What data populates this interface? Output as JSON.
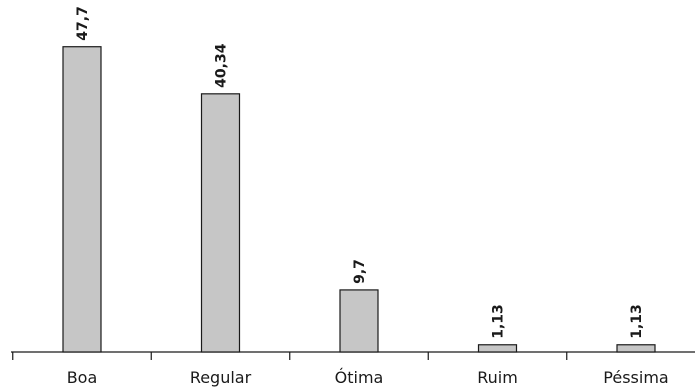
{
  "chart_data": {
    "type": "bar",
    "categories": [
      "Boa",
      "Regular",
      "Ótima",
      "Ruim",
      "Péssima"
    ],
    "values": [
      47.7,
      40.34,
      9.7,
      1.13,
      1.13
    ],
    "value_labels": [
      "47,7",
      "40,34",
      "9,7",
      "1,13",
      "1,13"
    ],
    "ylim": [
      0,
      55
    ],
    "grid": false,
    "legend": "none",
    "colors": {
      "bar": "#c6c6c6",
      "outline": "#1a1a1a"
    }
  }
}
